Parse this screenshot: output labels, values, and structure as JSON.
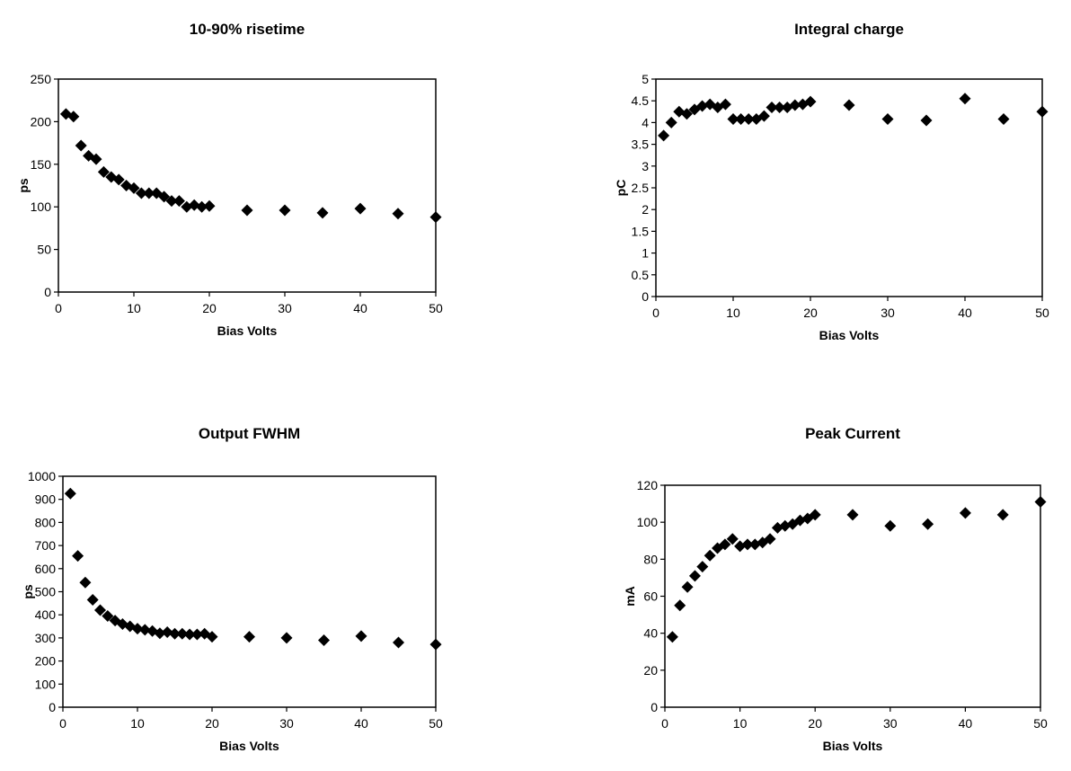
{
  "chart_data": [
    {
      "type": "scatter",
      "title": "10-90% risetime",
      "xlabel": "Bias Volts",
      "ylabel": "ps",
      "xlim": [
        0,
        50
      ],
      "ylim": [
        0,
        250
      ],
      "xticks": [
        "0",
        "10",
        "20",
        "30",
        "40",
        "50"
      ],
      "yticks": [
        "0",
        "50",
        "100",
        "150",
        "200",
        "250"
      ],
      "marker": "diamond",
      "marker_color": "#000000",
      "grid": false,
      "legend": false,
      "x": [
        1,
        2,
        3,
        4,
        5,
        6,
        7,
        8,
        9,
        10,
        11,
        12,
        13,
        14,
        15,
        16,
        17,
        18,
        19,
        20,
        25,
        30,
        35,
        40,
        45,
        50
      ],
      "y": [
        209,
        206,
        172,
        160,
        156,
        141,
        135,
        132,
        125,
        122,
        116,
        116,
        116,
        112,
        107,
        107,
        100,
        102,
        100,
        101,
        96,
        96,
        93,
        98,
        92,
        88
      ]
    },
    {
      "type": "scatter",
      "title": "Integral charge",
      "xlabel": "Bias Volts",
      "ylabel": "pC",
      "xlim": [
        0,
        50
      ],
      "ylim": [
        0,
        5
      ],
      "xticks": [
        "0",
        "10",
        "20",
        "30",
        "40",
        "50"
      ],
      "yticks": [
        "0",
        "0.5",
        "1",
        "1.5",
        "2",
        "2.5",
        "3",
        "3.5",
        "4",
        "4.5",
        "5"
      ],
      "marker": "diamond",
      "marker_color": "#000000",
      "grid": false,
      "legend": false,
      "x": [
        1,
        2,
        3,
        4,
        5,
        6,
        7,
        8,
        9,
        10,
        11,
        12,
        13,
        14,
        15,
        16,
        17,
        18,
        19,
        20,
        25,
        30,
        35,
        40,
        45,
        50
      ],
      "y": [
        3.7,
        4.0,
        4.25,
        4.2,
        4.3,
        4.38,
        4.42,
        4.35,
        4.42,
        4.08,
        4.08,
        4.08,
        4.08,
        4.15,
        4.35,
        4.35,
        4.35,
        4.4,
        4.42,
        4.48,
        4.4,
        4.08,
        4.05,
        4.55,
        4.08,
        4.25
      ]
    },
    {
      "type": "scatter",
      "title": "Output FWHM",
      "xlabel": "Bias Volts",
      "ylabel": "ps",
      "xlim": [
        0,
        50
      ],
      "ylim": [
        0,
        1000
      ],
      "xticks": [
        "0",
        "10",
        "20",
        "30",
        "40",
        "50"
      ],
      "yticks": [
        "0",
        "100",
        "200",
        "300",
        "400",
        "500",
        "600",
        "700",
        "800",
        "900",
        "1000"
      ],
      "marker": "diamond",
      "marker_color": "#000000",
      "grid": false,
      "legend": false,
      "x": [
        1,
        2,
        3,
        4,
        5,
        6,
        7,
        8,
        9,
        10,
        11,
        12,
        13,
        14,
        15,
        16,
        17,
        18,
        19,
        20,
        25,
        30,
        35,
        40,
        45,
        50
      ],
      "y": [
        925,
        655,
        540,
        465,
        420,
        395,
        375,
        360,
        350,
        340,
        335,
        330,
        320,
        325,
        318,
        318,
        315,
        315,
        318,
        305,
        305,
        300,
        290,
        308,
        280,
        272
      ]
    },
    {
      "type": "scatter",
      "title": "Peak Current",
      "xlabel": "Bias Volts",
      "ylabel": "mA",
      "xlim": [
        0,
        50
      ],
      "ylim": [
        0,
        120
      ],
      "xticks": [
        "0",
        "10",
        "20",
        "30",
        "40",
        "50"
      ],
      "yticks": [
        "0",
        "20",
        "40",
        "60",
        "80",
        "100",
        "120"
      ],
      "marker": "diamond",
      "marker_color": "#000000",
      "grid": false,
      "legend": false,
      "x": [
        1,
        2,
        3,
        4,
        5,
        6,
        7,
        8,
        9,
        10,
        11,
        12,
        13,
        14,
        15,
        16,
        17,
        18,
        19,
        20,
        25,
        30,
        35,
        40,
        45,
        50
      ],
      "y": [
        38,
        55,
        65,
        71,
        76,
        82,
        86,
        88,
        91,
        87,
        88,
        88,
        89,
        91,
        97,
        98,
        99,
        101,
        102,
        104,
        104,
        98,
        99,
        105,
        104,
        111
      ]
    }
  ]
}
